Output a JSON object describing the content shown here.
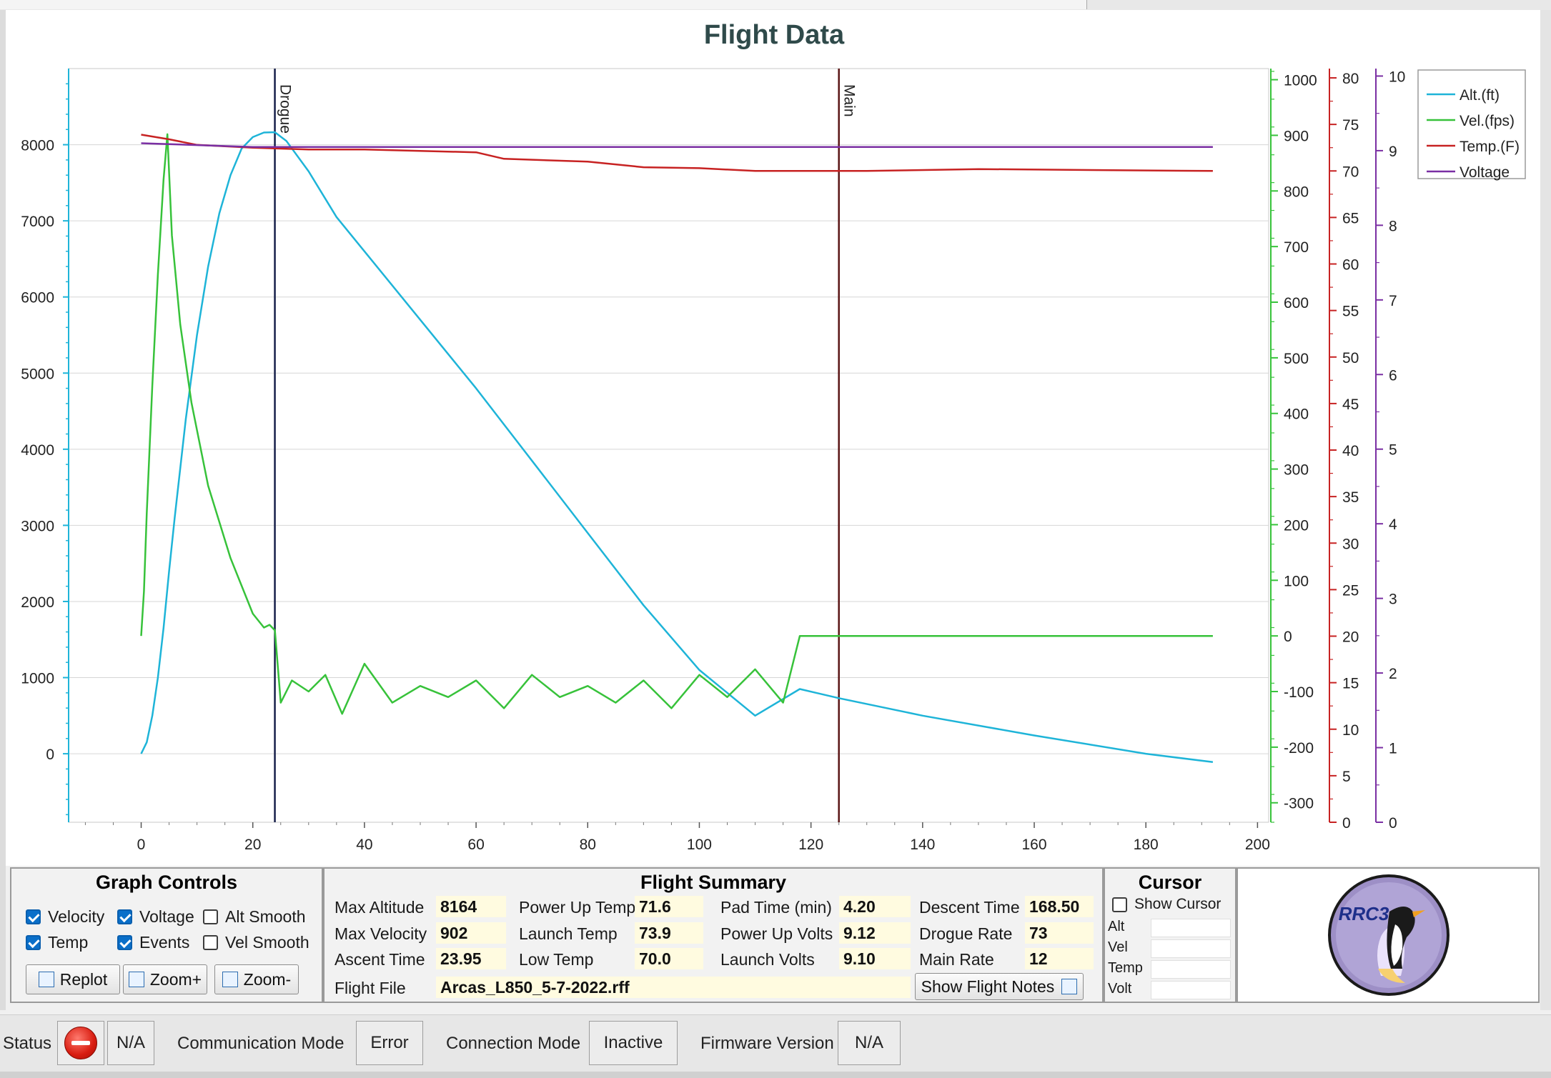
{
  "chart": {
    "title": "Flight Data",
    "event_lines": [
      {
        "label": "Drogue",
        "time": 23.95,
        "color": "#17204a"
      },
      {
        "label": "Main",
        "time": 125,
        "color": "#5a1414"
      }
    ],
    "legend": [
      {
        "label": "Alt.(ft)",
        "color": "#1eb4d8"
      },
      {
        "label": "Vel.(fps)",
        "color": "#37c23a"
      },
      {
        "label": "Temp.(F)",
        "color": "#c72222"
      },
      {
        "label": "Voltage",
        "color": "#7a2fa3"
      }
    ]
  },
  "chart_data": {
    "type": "line",
    "title": "Flight Data",
    "xlim": [
      -13,
      202
    ],
    "x_ticks": [
      0,
      20,
      40,
      60,
      80,
      100,
      120,
      140,
      160,
      180,
      200
    ],
    "axes": {
      "altitude": {
        "range": [
          -900,
          9000
        ],
        "ticks": [
          0,
          1000,
          2000,
          3000,
          4000,
          5000,
          6000,
          7000,
          8000
        ],
        "color": "#1eb4d8"
      },
      "velocity": {
        "range": [
          -335,
          1020
        ],
        "ticks": [
          -300,
          -200,
          -100,
          0,
          100,
          200,
          300,
          400,
          500,
          600,
          700,
          800,
          900,
          1000
        ],
        "color": "#37c23a"
      },
      "temperature": {
        "range": [
          0,
          81
        ],
        "ticks": [
          0,
          5,
          10,
          15,
          20,
          25,
          30,
          35,
          40,
          45,
          50,
          55,
          60,
          65,
          70,
          75,
          80
        ],
        "color": "#c72222"
      },
      "voltage": {
        "range": [
          0,
          10.1
        ],
        "ticks": [
          0,
          1,
          2,
          3,
          4,
          5,
          6,
          7,
          8,
          9,
          10
        ],
        "color": "#7a2fa3"
      }
    },
    "series": [
      {
        "name": "Alt.(ft)",
        "axis": "altitude",
        "x": [
          0,
          1,
          2,
          3,
          4,
          5,
          6,
          8,
          10,
          12,
          14,
          16,
          18,
          20,
          22,
          23.95,
          26,
          30,
          35,
          40,
          50,
          60,
          70,
          80,
          90,
          100,
          110,
          118,
          125,
          140,
          160,
          180,
          192
        ],
        "values": [
          0,
          150,
          500,
          1000,
          1650,
          2400,
          3100,
          4400,
          5500,
          6400,
          7100,
          7600,
          7950,
          8100,
          8160,
          8164,
          8050,
          7650,
          7050,
          6600,
          5700,
          4800,
          3850,
          2900,
          1950,
          1100,
          500,
          850,
          730,
          500,
          240,
          0,
          -110
        ]
      },
      {
        "name": "Vel.(fps)",
        "axis": "velocity",
        "x": [
          0,
          0.5,
          1,
          2,
          3,
          4,
          4.7,
          5.5,
          7,
          9,
          12,
          16,
          20,
          22,
          23,
          23.95,
          25,
          27,
          30,
          33,
          36,
          40,
          45,
          50,
          55,
          60,
          65,
          70,
          75,
          80,
          85,
          90,
          95,
          100,
          105,
          110,
          115,
          118,
          125,
          140,
          160,
          180,
          192
        ],
        "values": [
          0,
          80,
          220,
          450,
          650,
          820,
          902,
          720,
          560,
          420,
          270,
          140,
          40,
          15,
          20,
          10,
          -120,
          -80,
          -100,
          -70,
          -140,
          -50,
          -120,
          -90,
          -110,
          -80,
          -130,
          -70,
          -110,
          -90,
          -120,
          -80,
          -130,
          -70,
          -110,
          -60,
          -120,
          0,
          0,
          0,
          0,
          0,
          0
        ]
      },
      {
        "name": "Temp.(F)",
        "axis": "temperature",
        "x": [
          0,
          5,
          10,
          20,
          30,
          40,
          60,
          65,
          80,
          90,
          100,
          110,
          130,
          150,
          170,
          192
        ],
        "values": [
          73.9,
          73.4,
          72.8,
          72.5,
          72.3,
          72.3,
          72.0,
          71.3,
          71.0,
          70.4,
          70.3,
          70.0,
          70.0,
          70.2,
          70.1,
          70.0
        ]
      },
      {
        "name": "Voltage",
        "axis": "voltage",
        "x": [
          0,
          20,
          40,
          60,
          80,
          100,
          120,
          140,
          160,
          180,
          192
        ],
        "values": [
          9.1,
          9.05,
          9.05,
          9.05,
          9.05,
          9.05,
          9.05,
          9.05,
          9.05,
          9.05,
          9.05
        ]
      }
    ]
  },
  "graph_controls": {
    "title": "Graph Controls",
    "checkboxes": [
      {
        "label": "Velocity",
        "checked": true
      },
      {
        "label": "Voltage",
        "checked": true
      },
      {
        "label": "Alt Smooth",
        "checked": false
      },
      {
        "label": "Temp",
        "checked": true
      },
      {
        "label": "Events",
        "checked": true
      },
      {
        "label": "Vel Smooth",
        "checked": false
      }
    ],
    "buttons": {
      "replot": "Replot",
      "zoom_in": "Zoom+",
      "zoom_out": "Zoom-"
    }
  },
  "flight_summary": {
    "title": "Flight Summary",
    "max_altitude": {
      "label": "Max Altitude",
      "value": "8164"
    },
    "max_velocity": {
      "label": "Max Velocity",
      "value": "902"
    },
    "ascent_time": {
      "label": "Ascent Time",
      "value": "23.95"
    },
    "power_up_temp": {
      "label": "Power Up Temp",
      "value": "71.6"
    },
    "launch_temp": {
      "label": "Launch Temp",
      "value": "73.9"
    },
    "low_temp": {
      "label": "Low Temp",
      "value": "70.0"
    },
    "pad_time": {
      "label": "Pad Time (min)",
      "value": "4.20"
    },
    "power_up_volts": {
      "label": "Power Up Volts",
      "value": "9.12"
    },
    "launch_volts": {
      "label": "Launch Volts",
      "value": "9.10"
    },
    "descent_time": {
      "label": "Descent Time",
      "value": "168.50"
    },
    "drogue_rate": {
      "label": "Drogue Rate",
      "value": "73"
    },
    "main_rate": {
      "label": "Main Rate",
      "value": "12"
    },
    "flight_file": {
      "label": "Flight File",
      "value": "Arcas_L850_5-7-2022.rff"
    },
    "show_notes_button": "Show Flight Notes"
  },
  "cursor": {
    "title": "Cursor",
    "show_cursor": {
      "label": "Show Cursor",
      "checked": false
    },
    "fields": [
      {
        "label": "Alt",
        "value": ""
      },
      {
        "label": "Vel",
        "value": ""
      },
      {
        "label": "Temp",
        "value": ""
      },
      {
        "label": "Volt",
        "value": ""
      }
    ]
  },
  "logo": {
    "text": "RRC3"
  },
  "status_bar": {
    "status_label": "Status",
    "status_value": "N/A",
    "comm_mode_label": "Communication Mode",
    "comm_mode_value": "Error",
    "conn_mode_label": "Connection Mode",
    "conn_mode_value": "Inactive",
    "firmware_label": "Firmware Version",
    "firmware_value": "N/A"
  }
}
